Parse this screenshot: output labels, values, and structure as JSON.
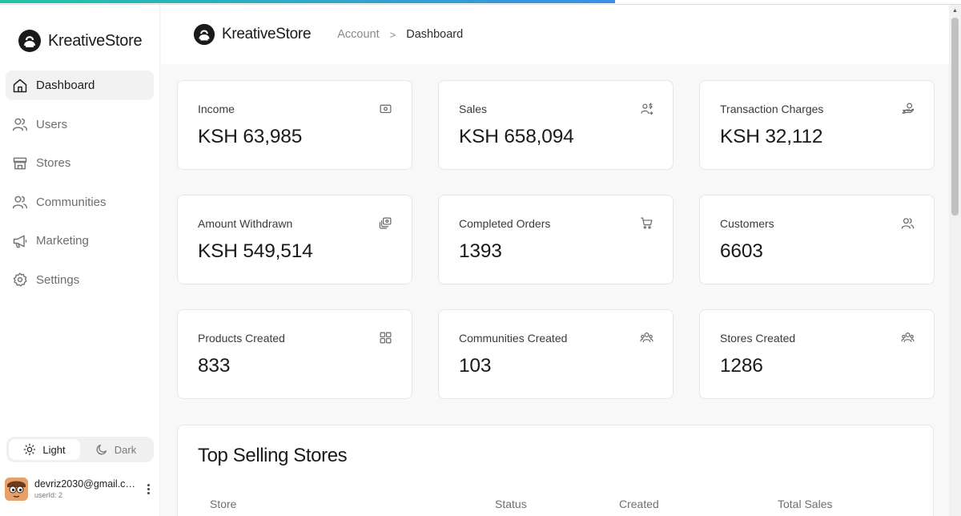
{
  "brand": {
    "name": "KreativeStore"
  },
  "loading": {
    "progress_percent": 64
  },
  "sidebar": {
    "items": [
      {
        "label": "Dashboard",
        "icon": "home-icon",
        "active": true
      },
      {
        "label": "Users",
        "icon": "users-icon",
        "active": false
      },
      {
        "label": "Stores",
        "icon": "store-icon",
        "active": false
      },
      {
        "label": "Communities",
        "icon": "users-icon",
        "active": false
      },
      {
        "label": "Marketing",
        "icon": "megaphone-icon",
        "active": false
      },
      {
        "label": "Settings",
        "icon": "gear-icon",
        "active": false
      }
    ],
    "theme": {
      "light_label": "Light",
      "dark_label": "Dark",
      "selected": "Light"
    },
    "user": {
      "email": "devriz2030@gmail.co...",
      "user_id": "userId: 2"
    }
  },
  "header": {
    "brand_name": "KreativeStore",
    "breadcrumb": {
      "parent": "Account",
      "separator": ">",
      "current": "Dashboard"
    }
  },
  "stats": [
    {
      "label": "Income",
      "value": "KSH 63,985",
      "icon": "cash-icon"
    },
    {
      "label": "Sales",
      "value": "KSH 658,094",
      "icon": "user-dollar-icon"
    },
    {
      "label": "Transaction Charges",
      "value": "KSH 32,112",
      "icon": "hand-coin-icon"
    },
    {
      "label": "Amount Withdrawn",
      "value": "KSH 549,514",
      "icon": "stacked-cards-icon"
    },
    {
      "label": "Completed Orders",
      "value": "1393",
      "icon": "cart-icon"
    },
    {
      "label": "Customers",
      "value": "6603",
      "icon": "customers-icon"
    },
    {
      "label": "Products Created",
      "value": "833",
      "icon": "grid-icon"
    },
    {
      "label": "Communities Created",
      "value": "103",
      "icon": "community-icon"
    },
    {
      "label": "Stores Created",
      "value": "1286",
      "icon": "community-icon"
    }
  ],
  "top_selling_stores": {
    "title": "Top Selling Stores",
    "columns": [
      "Store",
      "Status",
      "Created",
      "Total Sales"
    ]
  },
  "colors": {
    "progress_start": "#22c3a6",
    "progress_end": "#3a8ee6",
    "active_nav_bg": "#f2f2f2",
    "avatar_bg": "#e8a06a"
  }
}
